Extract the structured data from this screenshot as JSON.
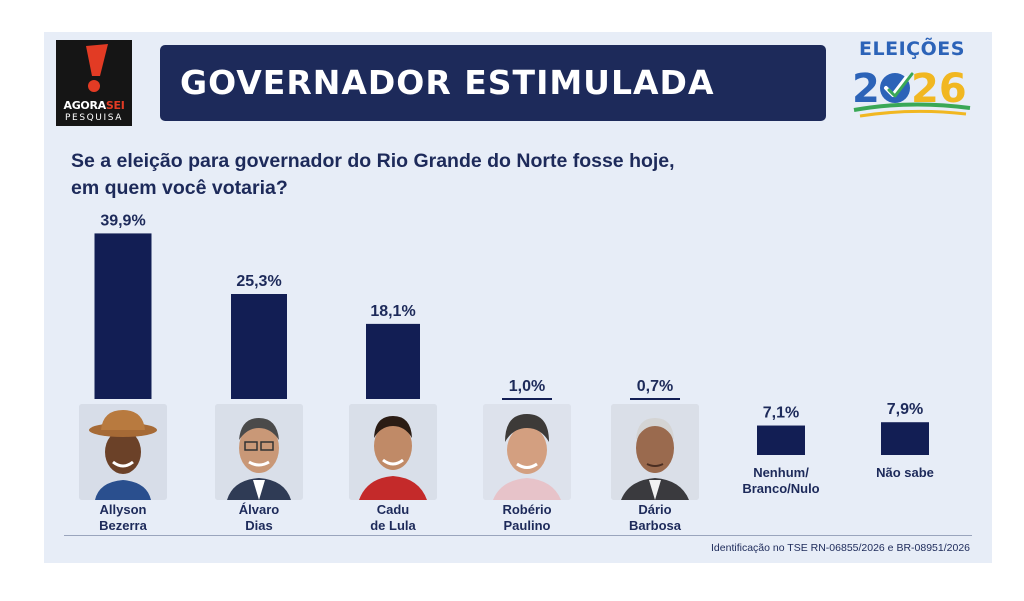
{
  "brand": {
    "logo_text_1": "AGORA",
    "logo_text_1_accent": "SEI",
    "logo_text_2": "PESQUISA",
    "badge_word": "ELEIÇÕES",
    "badge_year_left": "2",
    "badge_year_right": "26"
  },
  "header": {
    "title": "GOVERNADOR ESTIMULADA"
  },
  "question": {
    "line1": "Se a eleição para governador do Rio Grande do Norte fosse hoje,",
    "line2": "em quem você votaria?"
  },
  "colors": {
    "navy": "#121e54",
    "banner": "#1d2a5a",
    "background": "#e7edf7",
    "logo_red": "#e23b24"
  },
  "chart_data": {
    "type": "bar",
    "categories": [
      [
        "Allyson",
        "Bezerra"
      ],
      [
        "Álvaro",
        "Dias"
      ],
      [
        "Cadu",
        "de Lula"
      ],
      [
        "Robério",
        "Paulino"
      ],
      [
        "Dário",
        "Barbosa"
      ],
      [
        "Nenhum/",
        "Branco/Nulo"
      ],
      [
        "Não sabe"
      ]
    ],
    "values": [
      39.9,
      25.3,
      18.1,
      1.0,
      0.7,
      7.1,
      7.9
    ],
    "value_labels": [
      "39,9%",
      "25,3%",
      "18,1%",
      "1,0%",
      "0,7%",
      "7,1%",
      "7,9%"
    ],
    "has_photo": [
      true,
      true,
      true,
      true,
      true,
      false,
      false
    ],
    "unit": "%",
    "grid": false,
    "legend": "none"
  },
  "footer": {
    "note": "Identificação no TSE RN-06855/2026 e BR-08951/2026"
  }
}
